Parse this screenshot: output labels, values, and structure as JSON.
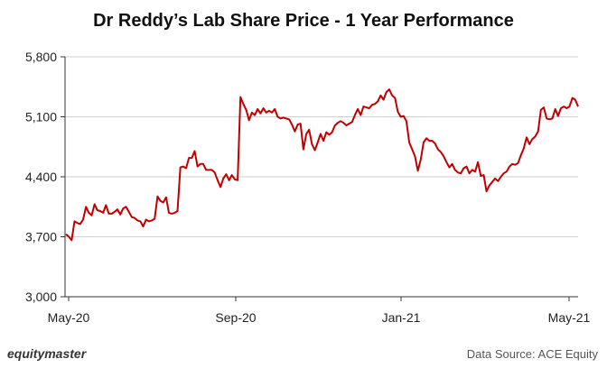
{
  "chart_data": {
    "type": "line",
    "title": "Dr Reddy’s Lab Share Price - 1 Year Performance",
    "xlabel": "",
    "ylabel": "",
    "ylim": [
      3000,
      5800
    ],
    "yticks": [
      "3,000",
      "3,700",
      "4,400",
      "5,100",
      "5,800"
    ],
    "ytick_values": [
      3000,
      3700,
      4400,
      5100,
      5800
    ],
    "xticks": [
      "May-20",
      "Sep-20",
      "Jan-21",
      "May-21"
    ],
    "grid": true,
    "line_color": "#c00000",
    "series": [
      {
        "values": [
          3730,
          3700,
          3660,
          3880,
          3860,
          3850,
          3900,
          4050,
          3980,
          3950,
          4080,
          4010,
          4000,
          3980,
          4070,
          3970,
          3970,
          3990,
          4020,
          3960,
          4030,
          4050,
          3990,
          3930,
          3920,
          3890,
          3880,
          3820,
          3900,
          3880,
          3890,
          3910,
          4170,
          4120,
          4100,
          4160,
          3980,
          3970,
          3980,
          4000,
          4510,
          4520,
          4500,
          4620,
          4620,
          4700,
          4520,
          4550,
          4550,
          4480,
          4480,
          4480,
          4450,
          4360,
          4280,
          4380,
          4430,
          4360,
          4420,
          4370,
          4360,
          5330,
          5250,
          5180,
          5060,
          5150,
          5120,
          5190,
          5140,
          5200,
          5150,
          5170,
          5150,
          5190,
          5100,
          5080,
          5090,
          5080,
          5070,
          5010,
          4930,
          5010,
          5020,
          4720,
          4900,
          4950,
          4780,
          4710,
          4800,
          4900,
          4820,
          4920,
          4890,
          4920,
          5000,
          5030,
          5050,
          5030,
          5000,
          5020,
          5040,
          5120,
          5190,
          5120,
          5220,
          5210,
          5200,
          5240,
          5250,
          5280,
          5350,
          5300,
          5390,
          5420,
          5350,
          5320,
          5160,
          5100,
          5110,
          5050,
          4800,
          4720,
          4640,
          4470,
          4600,
          4800,
          4850,
          4820,
          4820,
          4790,
          4720,
          4690,
          4640,
          4570,
          4510,
          4550,
          4480,
          4450,
          4440,
          4500,
          4520,
          4440,
          4480,
          4460,
          4570,
          4410,
          4420,
          4230,
          4300,
          4340,
          4380,
          4350,
          4400,
          4440,
          4460,
          4520,
          4550,
          4540,
          4560,
          4650,
          4730,
          4860,
          4780,
          4840,
          4870,
          4930,
          5180,
          5210,
          5080,
          5070,
          5080,
          5190,
          5110,
          5200,
          5220,
          5200,
          5220,
          5320,
          5300,
          5220
        ]
      }
    ]
  },
  "footer": {
    "brand": "equitymaster",
    "source": "Data Source: ACE Equity"
  }
}
